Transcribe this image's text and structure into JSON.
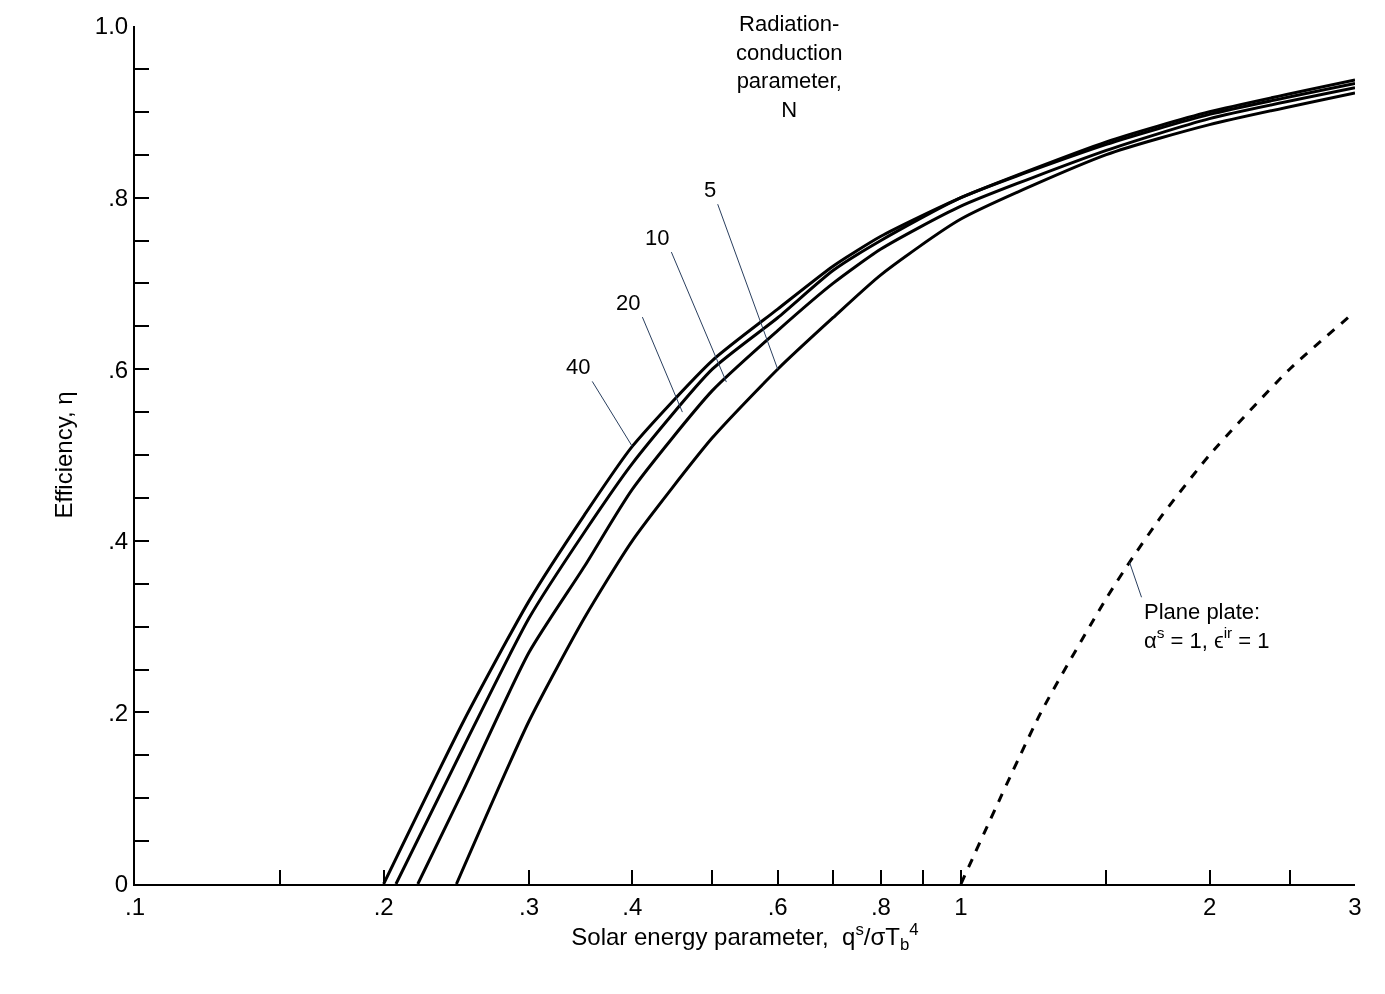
{
  "chart_data": {
    "type": "line",
    "xlabel": "Solar energy parameter,  q$^{s}$/σT$_{b}$$^{4}$",
    "ylabel": "Efficiency, η",
    "legend_title": "Radiation-\nconduction\nparameter,\nN",
    "series": [
      {
        "color": "#000000",
        "x": [
          0.2,
          0.25,
          0.3,
          0.35,
          0.4,
          0.5,
          0.6,
          0.7,
          0.8,
          1,
          1.5,
          2,
          3
        ],
        "values": [
          0,
          0.19,
          0.33,
          0.43,
          0.51,
          0.61,
          0.67,
          0.72,
          0.755,
          0.8,
          0.865,
          0.9,
          0.937
        ]
      },
      {
        "color": "#000000",
        "x": [
          0.207,
          0.25,
          0.3,
          0.35,
          0.4,
          0.5,
          0.6,
          0.7,
          0.8,
          1,
          1.5,
          2,
          3
        ],
        "values": [
          0,
          0.16,
          0.31,
          0.41,
          0.49,
          0.6,
          0.66,
          0.715,
          0.75,
          0.8,
          0.862,
          0.897,
          0.933
        ]
      },
      {
        "color": "#000000",
        "x": [
          0.22,
          0.25,
          0.3,
          0.35,
          0.4,
          0.5,
          0.6,
          0.7,
          0.8,
          1,
          1.5,
          2,
          3
        ],
        "values": [
          0,
          0.11,
          0.27,
          0.37,
          0.46,
          0.575,
          0.645,
          0.7,
          0.74,
          0.79,
          0.855,
          0.892,
          0.928
        ]
      },
      {
        "color": "#000000",
        "x": [
          0.245,
          0.3,
          0.35,
          0.4,
          0.5,
          0.6,
          0.7,
          0.8,
          1,
          1.5,
          2,
          3
        ],
        "values": [
          0,
          0.19,
          0.31,
          0.4,
          0.52,
          0.6,
          0.66,
          0.71,
          0.775,
          0.85,
          0.885,
          0.922
        ]
      },
      {
        "color": "#000000",
        "line_style": "dashed",
        "x": [
          1,
          1.25,
          1.5,
          1.6,
          1.75,
          2,
          2.5,
          3
        ],
        "values": [
          0,
          0.2,
          0.333,
          0.375,
          0.429,
          0.5,
          0.6,
          0.667
        ]
      }
    ],
    "annotations": [
      {
        "text": "40",
        "x": 0.4,
        "y": 0.51
      },
      {
        "text": "20",
        "x": 0.46,
        "y": 0.55
      },
      {
        "text": "10",
        "x": 0.52,
        "y": 0.585
      },
      {
        "text": "5",
        "x": 0.6,
        "y": 0.6
      },
      {
        "text": "Plane plate:\nα$^{s}$ = 1, ϵ$^{ir}$ = 1",
        "x": 1.6,
        "y": 0.375
      }
    ],
    "log": "x",
    "xlim": [
      0.1,
      3
    ],
    "ylim": [
      0,
      1
    ],
    "xticks": [
      {
        "value": 0.1,
        "label": ".1"
      },
      {
        "value": 0.15,
        "label": null
      },
      {
        "value": 0.2,
        "label": ".2"
      },
      {
        "value": 0.3,
        "label": ".3"
      },
      {
        "value": 0.4,
        "label": ".4"
      },
      {
        "value": 0.5,
        "label": null
      },
      {
        "value": 0.6,
        "label": ".6"
      },
      {
        "value": 0.7,
        "label": null
      },
      {
        "value": 0.8,
        "label": ".8"
      },
      {
        "value": 0.9,
        "label": null
      },
      1,
      {
        "value": 1.5,
        "label": null
      },
      2,
      {
        "value": 2.5,
        "label": null
      },
      3
    ],
    "yticks": [
      0,
      {
        "value": 0.05,
        "label": null
      },
      {
        "value": 0.1,
        "label": null
      },
      {
        "value": 0.15,
        "label": null
      },
      {
        "value": 0.2,
        "label": ".2"
      },
      {
        "value": 0.25,
        "label": null
      },
      {
        "value": 0.3,
        "label": null
      },
      {
        "value": 0.35,
        "label": null
      },
      {
        "value": 0.4,
        "label": ".4"
      },
      {
        "value": 0.45,
        "label": null
      },
      {
        "value": 0.5,
        "label": null
      },
      {
        "value": 0.55,
        "label": null
      },
      {
        "value": 0.6,
        "label": ".6"
      },
      {
        "value": 0.65,
        "label": null
      },
      {
        "value": 0.7,
        "label": null
      },
      {
        "value": 0.75,
        "label": null
      },
      {
        "value": 0.8,
        "label": ".8"
      },
      {
        "value": 0.85,
        "label": null
      },
      {
        "value": 0.9,
        "label": null
      },
      {
        "value": 0.95,
        "label": null
      },
      {
        "value": 1,
        "label": "1.0"
      }
    ],
    "tick_labels": true
  }
}
